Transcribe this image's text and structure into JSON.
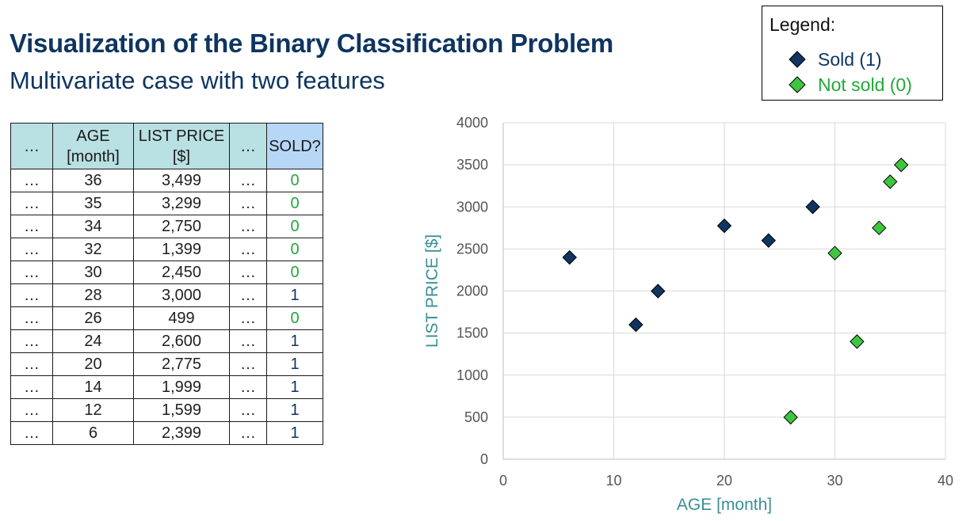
{
  "header": {
    "title": "Visualization of the Binary Classification Problem",
    "subtitle": "Multivariate case with two features"
  },
  "legend": {
    "title": "Legend:",
    "sold_label": "Sold (1)",
    "not_sold_label": "Not sold (0)",
    "sold_color": "#0f3560",
    "not_sold_color": "#3fc63f"
  },
  "table": {
    "headers": {
      "ellipsis1": "…",
      "age_line1": "AGE",
      "age_line2": "[month]",
      "price_line1": "LIST PRICE",
      "price_line2": "[$]",
      "ellipsis2": "…",
      "sold": "SOLD?"
    },
    "rows": [
      {
        "dots1": "…",
        "age": "36",
        "price": "3,499",
        "dots2": "…",
        "sold": "0"
      },
      {
        "dots1": "…",
        "age": "35",
        "price": "3,299",
        "dots2": "…",
        "sold": "0"
      },
      {
        "dots1": "…",
        "age": "34",
        "price": "2,750",
        "dots2": "…",
        "sold": "0"
      },
      {
        "dots1": "…",
        "age": "32",
        "price": "1,399",
        "dots2": "…",
        "sold": "0"
      },
      {
        "dots1": "…",
        "age": "30",
        "price": "2,450",
        "dots2": "…",
        "sold": "0"
      },
      {
        "dots1": "…",
        "age": "28",
        "price": "3,000",
        "dots2": "…",
        "sold": "1"
      },
      {
        "dots1": "…",
        "age": "26",
        "price": "499",
        "dots2": "…",
        "sold": "0"
      },
      {
        "dots1": "…",
        "age": "24",
        "price": "2,600",
        "dots2": "…",
        "sold": "1"
      },
      {
        "dots1": "…",
        "age": "20",
        "price": "2,775",
        "dots2": "…",
        "sold": "1"
      },
      {
        "dots1": "…",
        "age": "14",
        "price": "1,999",
        "dots2": "…",
        "sold": "1"
      },
      {
        "dots1": "…",
        "age": "12",
        "price": "1,599",
        "dots2": "…",
        "sold": "1"
      },
      {
        "dots1": "…",
        "age": "6",
        "price": "2,399",
        "dots2": "…",
        "sold": "1"
      }
    ]
  },
  "chart_data": {
    "type": "scatter",
    "title": "",
    "xlabel": "AGE [month]",
    "ylabel": "LIST PRICE [$]",
    "xlim": [
      0,
      40
    ],
    "ylim": [
      0,
      4000
    ],
    "xticks": [
      0,
      10,
      20,
      30,
      40
    ],
    "yticks": [
      0,
      500,
      1000,
      1500,
      2000,
      2500,
      3000,
      3500,
      4000
    ],
    "grid": true,
    "legend_position": "top-right",
    "series": [
      {
        "name": "Sold (1)",
        "color": "#0f3560",
        "points": [
          [
            6,
            2399
          ],
          [
            12,
            1599
          ],
          [
            14,
            1999
          ],
          [
            20,
            2775
          ],
          [
            24,
            2600
          ],
          [
            28,
            3000
          ]
        ]
      },
      {
        "name": "Not sold (0)",
        "color": "#3fc63f",
        "points": [
          [
            26,
            499
          ],
          [
            30,
            2450
          ],
          [
            32,
            1399
          ],
          [
            34,
            2750
          ],
          [
            35,
            3299
          ],
          [
            36,
            3499
          ]
        ]
      }
    ]
  }
}
